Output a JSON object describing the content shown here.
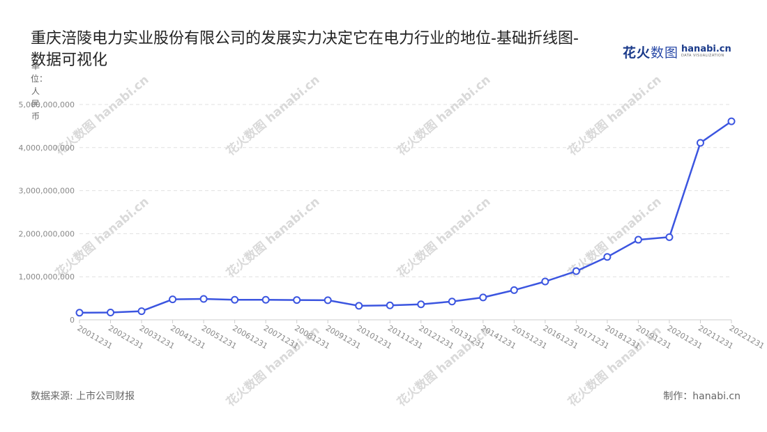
{
  "title": "重庆涪陵电力实业股份有限公司的发展实力决定它在电力行业的地位-基础折线图-数据可视化",
  "brand": {
    "cn_a": "花火",
    "cn_b": "数图",
    "en": "hanabi.cn",
    "sub": "DATA VISUALIZATION"
  },
  "unit_label": "单位：人民币",
  "source": "数据来源: 上市公司财报",
  "maker": "制作：hanabi.cn",
  "colors": {
    "line": "#3b55e0",
    "grid": "#e0e0e0",
    "axis": "#cccccc"
  },
  "chart_data": {
    "type": "line",
    "title": "重庆涪陵电力实业股份有限公司的发展实力决定它在电力行业的地位-基础折线图-数据可视化",
    "ylabel": "单位：人民币",
    "categories": [
      "20011231",
      "20021231",
      "20031231",
      "20041231",
      "20051231",
      "20061231",
      "20071231",
      "20081231",
      "20091231",
      "20101231",
      "20111231",
      "20121231",
      "20131231",
      "20141231",
      "20151231",
      "20161231",
      "20171231",
      "20181231",
      "20191231",
      "20201231",
      "20211231",
      "20221231"
    ],
    "y_ticks": [
      "0",
      "1,000,000,000",
      "2,000,000,000",
      "3,000,000,000",
      "4,000,000,000",
      "5,000,000,000"
    ],
    "values": [
      165000000,
      170000000,
      200000000,
      475000000,
      485000000,
      465000000,
      465000000,
      460000000,
      455000000,
      325000000,
      335000000,
      360000000,
      425000000,
      520000000,
      690000000,
      890000000,
      1130000000,
      1460000000,
      1860000000,
      1920000000,
      4110000000,
      4610000000
    ],
    "ylim": [
      0,
      5000000000
    ],
    "grid": true
  }
}
